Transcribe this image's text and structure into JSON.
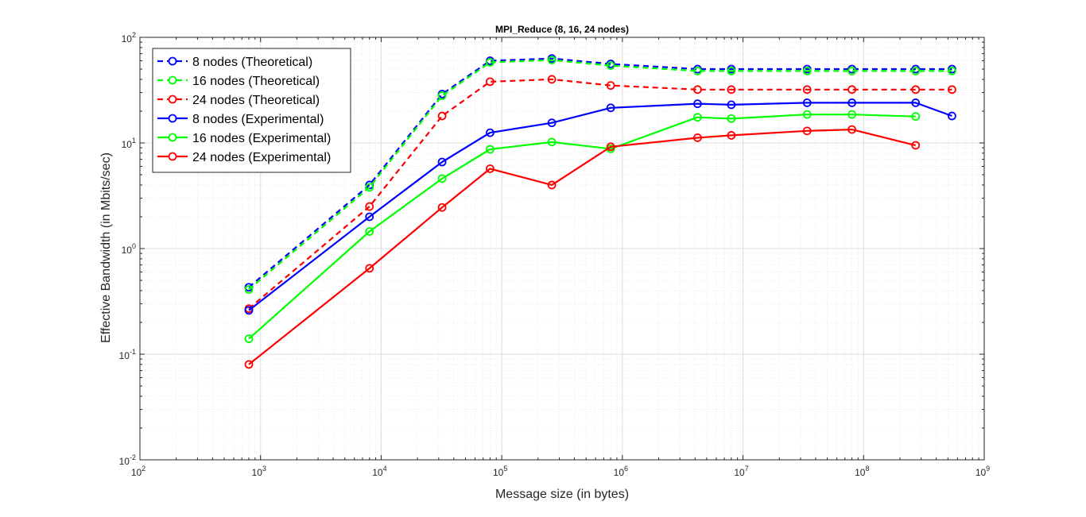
{
  "chart_data": {
    "type": "line",
    "title": "MPI_Reduce (8, 16, 24 nodes)",
    "xlabel": "Message size (in bytes)",
    "ylabel": "Effective Bandwidth (in Mbits/sec)",
    "xscale": "log",
    "yscale": "log",
    "xlim": [
      100,
      1000000000
    ],
    "ylim": [
      0.01,
      100
    ],
    "grid": true,
    "legend_position": "top-left",
    "x_ticks": [
      {
        "base": "10",
        "exp": "2"
      },
      {
        "base": "10",
        "exp": "3"
      },
      {
        "base": "10",
        "exp": "4"
      },
      {
        "base": "10",
        "exp": "5"
      },
      {
        "base": "10",
        "exp": "6"
      },
      {
        "base": "10",
        "exp": "7"
      },
      {
        "base": "10",
        "exp": "8"
      },
      {
        "base": "10",
        "exp": "9"
      }
    ],
    "y_ticks": [
      {
        "base": "10",
        "exp": "-2"
      },
      {
        "base": "10",
        "exp": "-1"
      },
      {
        "base": "10",
        "exp": "0"
      },
      {
        "base": "10",
        "exp": "1"
      },
      {
        "base": "10",
        "exp": "2"
      }
    ],
    "series": [
      {
        "name": "8 nodes (Theoretical)",
        "color": "#0000ff",
        "style": "dashed",
        "x": [
          800,
          8000,
          32000,
          80000,
          260000,
          800000,
          4200000,
          8000000,
          34000000,
          80000000,
          270000000,
          540000000
        ],
        "y": [
          0.43,
          4.0,
          29,
          60,
          63,
          56,
          50,
          50,
          50,
          50,
          50,
          50
        ]
      },
      {
        "name": "16 nodes (Theoretical)",
        "color": "#00ff00",
        "style": "dashed",
        "x": [
          800,
          8000,
          32000,
          80000,
          260000,
          800000,
          4200000,
          8000000,
          34000000,
          80000000,
          270000000,
          540000000
        ],
        "y": [
          0.41,
          3.8,
          28,
          58,
          61,
          54,
          48,
          48,
          48,
          48,
          48,
          48
        ]
      },
      {
        "name": "24 nodes (Theoretical)",
        "color": "#ff0000",
        "style": "dashed",
        "x": [
          800,
          8000,
          32000,
          80000,
          260000,
          800000,
          4200000,
          8000000,
          34000000,
          80000000,
          270000000,
          540000000
        ],
        "y": [
          0.27,
          2.5,
          18,
          38,
          40,
          35,
          32,
          32,
          32,
          32,
          32,
          32
        ]
      },
      {
        "name": "8 nodes (Experimental)",
        "color": "#0000ff",
        "style": "solid",
        "x": [
          800,
          8000,
          32000,
          80000,
          260000,
          800000,
          4200000,
          8000000,
          34000000,
          80000000,
          270000000,
          540000000
        ],
        "y": [
          0.26,
          2.0,
          6.6,
          12.5,
          15.5,
          21.5,
          23.5,
          23.0,
          24,
          24,
          24,
          18
        ]
      },
      {
        "name": "16 nodes (Experimental)",
        "color": "#00ff00",
        "style": "solid",
        "x": [
          800,
          8000,
          32000,
          80000,
          260000,
          800000,
          4200000,
          8000000,
          34000000,
          80000000,
          270000000
        ],
        "y": [
          0.14,
          1.45,
          4.6,
          8.7,
          10.2,
          8.8,
          17.5,
          17.0,
          18.6,
          18.6,
          17.8
        ]
      },
      {
        "name": "24 nodes (Experimental)",
        "color": "#ff0000",
        "style": "solid",
        "x": [
          800,
          8000,
          32000,
          80000,
          260000,
          800000,
          4200000,
          8000000,
          34000000,
          80000000,
          270000000
        ],
        "y": [
          0.08,
          0.65,
          2.45,
          5.7,
          4.0,
          9.2,
          11.2,
          11.8,
          13.0,
          13.4,
          9.5
        ]
      }
    ]
  }
}
